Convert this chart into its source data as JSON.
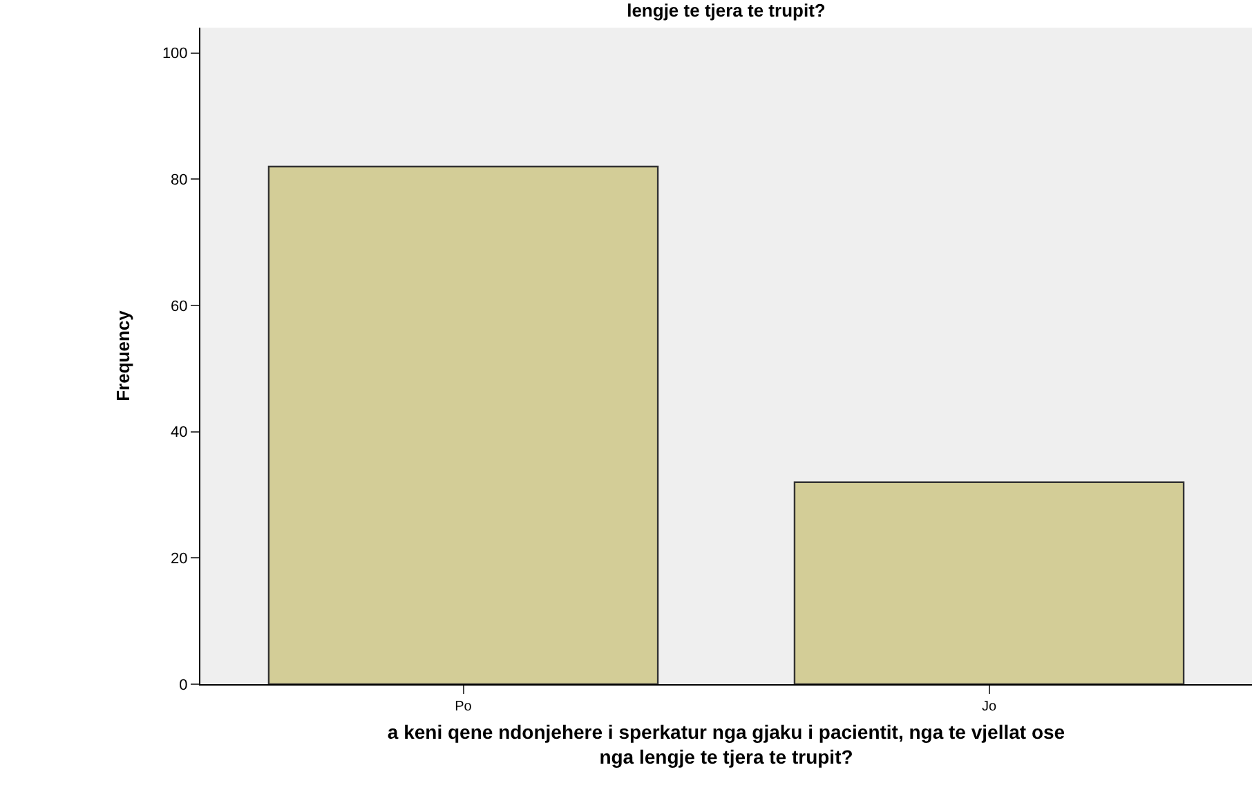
{
  "chart_data": {
    "type": "bar",
    "title": "lengje te tjera te trupit?",
    "xlabel": "a keni qene ndonjehere i sperkatur nga gjaku i pacientit, nga te vjellat ose\nnga lengje te tjera te trupit?",
    "ylabel": "Frequency",
    "categories": [
      "Po",
      "Jo"
    ],
    "values": [
      82,
      32
    ],
    "color": "#d3cd97",
    "ylim": [
      0,
      104
    ],
    "yticks": [
      0,
      20,
      40,
      60,
      80,
      100
    ],
    "grid": false
  }
}
